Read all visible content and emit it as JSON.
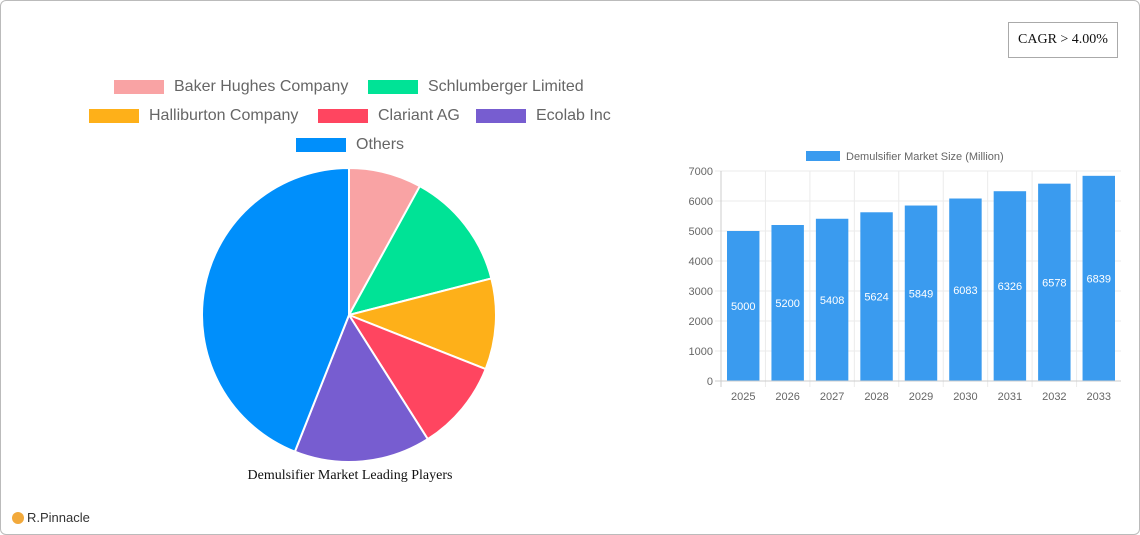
{
  "cagr_label": "CAGR > 4.00%",
  "logo_text": "R.Pinnacle",
  "chart_data": [
    {
      "type": "pie",
      "title": "Demulsifier Market Leading Players",
      "legend_position": "top",
      "slices": [
        {
          "name": "Baker Hughes Company",
          "value": 8,
          "color": "#f9a3a4"
        },
        {
          "name": "Schlumberger Limited",
          "value": 13,
          "color": "#00e396"
        },
        {
          "name": "Halliburton Company",
          "value": 10,
          "color": "#feb019"
        },
        {
          "name": "Clariant AG",
          "value": 10,
          "color": "#ff4560"
        },
        {
          "name": "Ecolab Inc",
          "value": 15,
          "color": "#775dd0"
        },
        {
          "name": "Others",
          "value": 44,
          "color": "#008ffb"
        }
      ]
    },
    {
      "type": "bar",
      "legend_position": "top",
      "series": [
        {
          "name": "Demulsifier Market Size (Million)",
          "color": "#3a9bef",
          "values": [
            5000,
            5200,
            5408,
            5624,
            5849,
            6083,
            6326,
            6578,
            6839
          ]
        }
      ],
      "categories": [
        "2025",
        "2026",
        "2027",
        "2028",
        "2029",
        "2030",
        "2031",
        "2032",
        "2033"
      ],
      "ylim": [
        0,
        7000
      ],
      "yticks": [
        "0",
        "1000",
        "2000",
        "3000",
        "4000",
        "5000",
        "6000",
        "7000"
      ],
      "grid": true,
      "data_labels": true
    }
  ]
}
